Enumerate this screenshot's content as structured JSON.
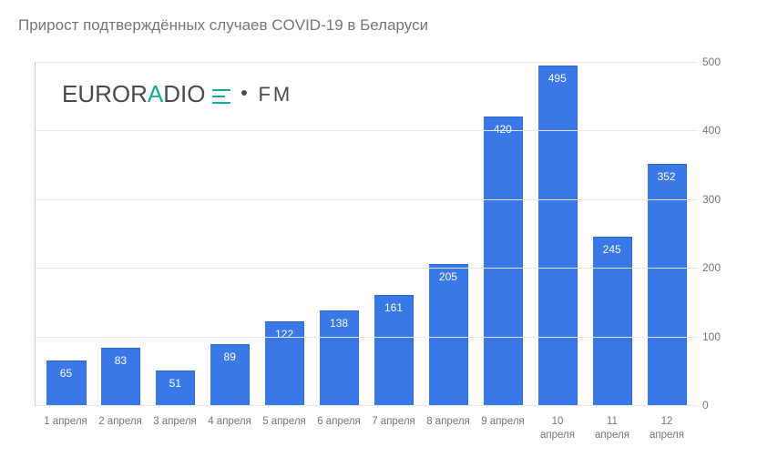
{
  "chart": {
    "type": "bar",
    "title": "Прирост подтверждённых случаев COVID-19 в Беларуси",
    "title_color": "#757575",
    "title_fontsize": 17,
    "background_color": "#ffffff",
    "grid_color": "#e6e6e6",
    "axis_color": "#cccccc",
    "label_color": "#757575",
    "label_fontsize": 12,
    "bar_color": "#3b78e7",
    "bar_label_color": "#ffffff",
    "bar_width": 0.72,
    "ylim": [
      0,
      500
    ],
    "ytick_step": 100,
    "yticks": [
      0,
      100,
      200,
      300,
      400,
      500
    ],
    "categories": [
      "1 апреля",
      "2 апреля",
      "3 апреля",
      "4 апреля",
      "5 апреля",
      "6 апреля",
      "7 апреля",
      "8 апреля",
      "9 апреля",
      "10 апреля",
      "11 апреля",
      "12 апреля"
    ],
    "values": [
      65,
      83,
      51,
      89,
      122,
      138,
      161,
      205,
      420,
      495,
      245,
      352
    ]
  },
  "logo": {
    "text_main": "EURORADIO",
    "text_suffix": "FM",
    "accent_color": "#1aa89c",
    "text_color": "#4a4a4a"
  }
}
